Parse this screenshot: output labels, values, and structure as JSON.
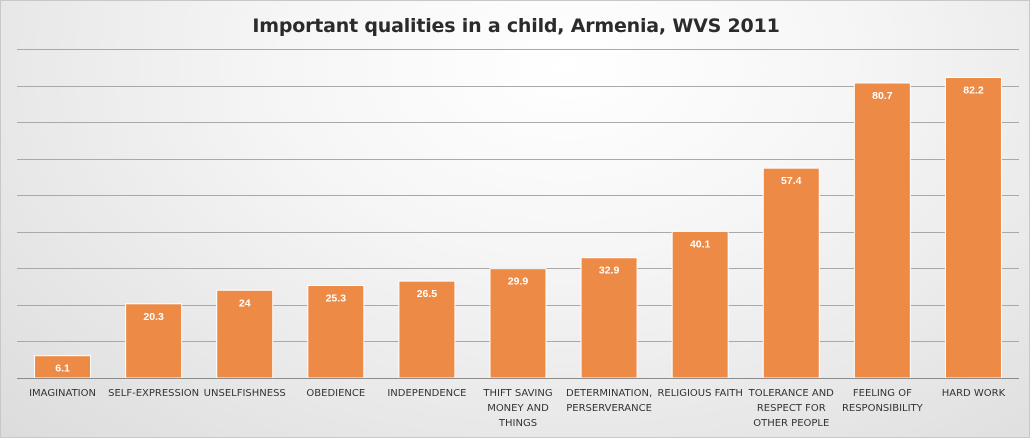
{
  "chart_data": {
    "type": "bar",
    "title": "Important qualities in a child, Armenia, WVS 2011",
    "categories": [
      "IMAGINATION",
      "SELF-EXPRESSION",
      "UNSELFISHNESS",
      "OBEDIENCE",
      "INDEPENDENCE",
      "THIFT SAVING MONEY AND THINGS",
      "DETERMINATION, PERSERVERANCE",
      "RELIGIOUS FAITH",
      "TOLERANCE AND RESPECT FOR OTHER PEOPLE",
      "FEELING OF RESPONSIBILITY",
      "HARD WORK"
    ],
    "category_lines": [
      [
        "IMAGINATION"
      ],
      [
        "SELF-EXPRESSION"
      ],
      [
        "UNSELFISHNESS"
      ],
      [
        "OBEDIENCE"
      ],
      [
        "INDEPENDENCE"
      ],
      [
        "THIFT SAVING",
        "MONEY AND",
        "THINGS"
      ],
      [
        "DETERMINATION,",
        "PERSERVERANCE"
      ],
      [
        "RELIGIOUS FAITH"
      ],
      [
        "TOLERANCE AND",
        "RESPECT FOR",
        "OTHER PEOPLE"
      ],
      [
        "FEELING OF",
        "RESPONSIBILITY"
      ],
      [
        "HARD WORK"
      ]
    ],
    "values": [
      6.1,
      20.3,
      24,
      25.3,
      26.5,
      29.9,
      32.9,
      40.1,
      57.4,
      80.7,
      82.2
    ],
    "ylim": [
      0,
      90
    ],
    "gridlines": true,
    "show_y_axis_labels": false,
    "xlabel": "",
    "ylabel": "",
    "colors": {
      "bar": "#ED8A45",
      "bar_border": "#ffffff",
      "grid": "#a9a9a9",
      "axis": "#8c8c8c",
      "data_label": "#ffffff",
      "title": "#2b2b2b"
    }
  }
}
